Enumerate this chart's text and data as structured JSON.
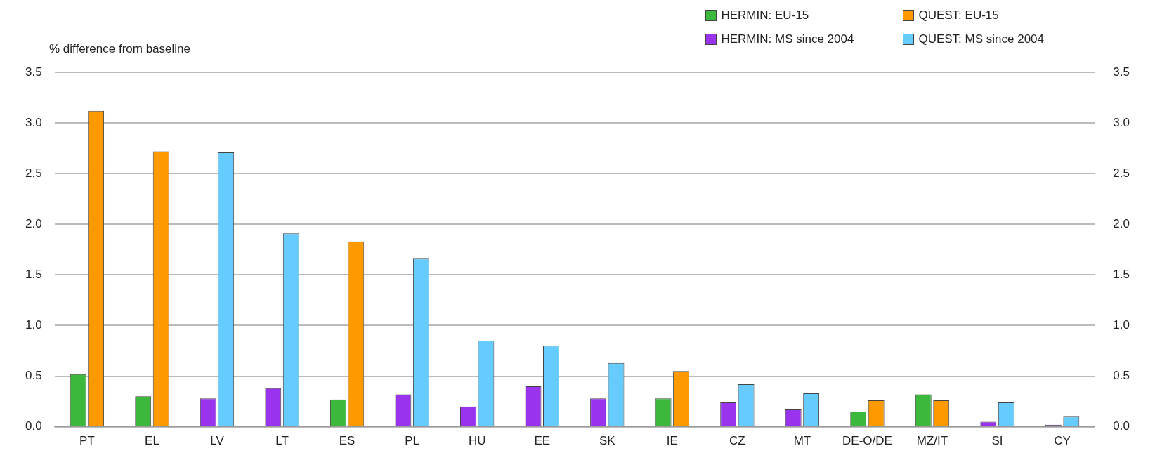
{
  "chart_data": {
    "type": "bar",
    "ylabel": "% difference from baseline",
    "categories": [
      "PT",
      "EL",
      "LV",
      "LT",
      "ES",
      "PL",
      "HU",
      "EE",
      "SK",
      "IE",
      "CZ",
      "MT",
      "DE-O/DE",
      "MZ/IT",
      "SI",
      "CY"
    ],
    "series": [
      {
        "name": "HERMIN: EU-15",
        "color": "#3cb93c",
        "values": [
          0.52,
          0.3,
          null,
          null,
          0.27,
          null,
          null,
          null,
          null,
          0.28,
          null,
          null,
          0.15,
          0.32,
          null,
          null
        ]
      },
      {
        "name": "HERMIN: MS since 2004",
        "color": "#9933ee",
        "values": [
          null,
          null,
          0.28,
          0.38,
          null,
          0.32,
          0.2,
          0.4,
          0.28,
          null,
          0.24,
          0.17,
          null,
          null,
          0.05,
          0.02
        ]
      },
      {
        "name": "QUEST: EU-15",
        "color": "#ff9900",
        "values": [
          3.12,
          2.72,
          null,
          null,
          1.83,
          null,
          null,
          null,
          null,
          0.55,
          null,
          null,
          0.26,
          0.26,
          null,
          null
        ]
      },
      {
        "name": "QUEST: MS since 2004",
        "color": "#66ccff",
        "values": [
          null,
          null,
          2.71,
          1.91,
          null,
          1.66,
          0.85,
          0.8,
          0.63,
          null,
          0.42,
          0.33,
          null,
          null,
          0.24,
          0.1
        ]
      }
    ],
    "ylim": [
      0,
      3.5
    ],
    "yticks": [
      {
        "value": 0,
        "label": "0.0"
      },
      0.5,
      {
        "value": 1,
        "label": "1.0"
      },
      1.5,
      {
        "value": 2,
        "label": "2.0"
      },
      2.5,
      {
        "value": 3,
        "label": "3.0"
      },
      3.5
    ],
    "y2lim": [
      0,
      3.5
    ],
    "y2ticks": [
      {
        "value": 0,
        "label": "0.0"
      },
      0.5,
      {
        "value": 1,
        "label": "1.0"
      },
      1.5,
      {
        "value": 2,
        "label": "2.0"
      },
      2.5,
      {
        "value": 3,
        "label": "3.0"
      },
      3.5
    ],
    "grid": "y",
    "legend": "top right"
  }
}
